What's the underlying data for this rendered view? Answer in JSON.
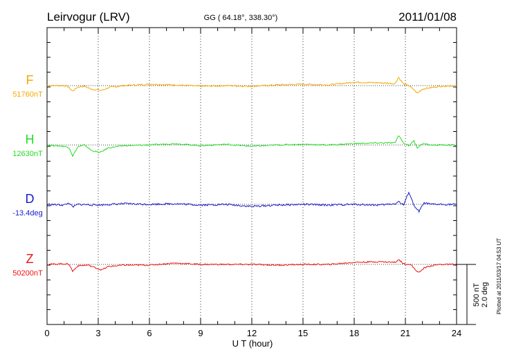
{
  "chart_data": {
    "type": "line",
    "title": "Leirvogur (LRV)",
    "subtitle": "GG ( 64.18°, 338.30°)",
    "date": "2011/01/08",
    "xlabel": "U T (hour)",
    "xlim": [
      0,
      24
    ],
    "xticks": [
      0,
      3,
      6,
      9,
      12,
      15,
      18,
      21,
      24
    ],
    "grid": true,
    "scale_label_1": "500 nT",
    "scale_label_2": "2.0 deg",
    "footer": "Plotted at 2011/03/17 04:53 UT",
    "series": [
      {
        "name": "F",
        "baseline_label": "51760nT",
        "color": "#f5a800",
        "offset": 0.95,
        "values": [
          [
            0,
            0
          ],
          [
            1,
            0
          ],
          [
            1.2,
            -1
          ],
          [
            1.5,
            -8
          ],
          [
            1.8,
            -2
          ],
          [
            2.2,
            -1
          ],
          [
            2.6,
            -5
          ],
          [
            3.2,
            -7
          ],
          [
            3.6,
            -3
          ],
          [
            4.5,
            0
          ],
          [
            6,
            2
          ],
          [
            7.5,
            1
          ],
          [
            9,
            -1
          ],
          [
            10.5,
            0
          ],
          [
            12,
            -1
          ],
          [
            13.5,
            1
          ],
          [
            15,
            2
          ],
          [
            16.5,
            1
          ],
          [
            18,
            5
          ],
          [
            19.5,
            4
          ],
          [
            20.4,
            3
          ],
          [
            20.6,
            12
          ],
          [
            20.9,
            2
          ],
          [
            21.2,
            0
          ],
          [
            21.5,
            -6
          ],
          [
            21.7,
            -11
          ],
          [
            22,
            -5
          ],
          [
            22.5,
            -3
          ],
          [
            23,
            -1
          ],
          [
            24,
            0
          ]
        ]
      },
      {
        "name": "H",
        "baseline_label": "12630nT",
        "color": "#22dd22",
        "offset": 0.8,
        "values": [
          [
            0,
            0
          ],
          [
            1,
            -2
          ],
          [
            1.3,
            -4
          ],
          [
            1.5,
            -16
          ],
          [
            1.8,
            -3
          ],
          [
            2.2,
            0
          ],
          [
            2.6,
            -8
          ],
          [
            3.1,
            -11
          ],
          [
            3.6,
            -4
          ],
          [
            4.5,
            -1
          ],
          [
            6,
            0
          ],
          [
            7.5,
            2
          ],
          [
            9,
            -1
          ],
          [
            10.5,
            1
          ],
          [
            12,
            -2
          ],
          [
            13.5,
            0
          ],
          [
            15,
            1
          ],
          [
            16.5,
            0
          ],
          [
            18,
            2
          ],
          [
            19.5,
            3
          ],
          [
            20.4,
            3
          ],
          [
            20.6,
            14
          ],
          [
            20.9,
            3
          ],
          [
            21.2,
            -1
          ],
          [
            21.5,
            6
          ],
          [
            21.7,
            -4
          ],
          [
            22,
            2
          ],
          [
            22.5,
            0
          ],
          [
            23,
            0
          ],
          [
            24,
            0
          ]
        ]
      },
      {
        "name": "D",
        "baseline_label": "-13.4deg",
        "color": "#1a1acc",
        "offset": 1.2,
        "values": [
          [
            0,
            0
          ],
          [
            1,
            -1
          ],
          [
            1.3,
            2
          ],
          [
            1.5,
            -4
          ],
          [
            1.8,
            0
          ],
          [
            3,
            -1
          ],
          [
            4.5,
            1
          ],
          [
            6,
            0
          ],
          [
            7.5,
            1
          ],
          [
            9,
            -1
          ],
          [
            10.5,
            0
          ],
          [
            12,
            -3
          ],
          [
            13.5,
            -1
          ],
          [
            15,
            0
          ],
          [
            16.5,
            -1
          ],
          [
            18,
            0
          ],
          [
            19.5,
            -1
          ],
          [
            20.4,
            1
          ],
          [
            20.6,
            4
          ],
          [
            20.9,
            -1
          ],
          [
            21.2,
            18
          ],
          [
            21.4,
            5
          ],
          [
            21.6,
            -6
          ],
          [
            21.8,
            -10
          ],
          [
            22.1,
            2
          ],
          [
            22.5,
            0
          ],
          [
            23,
            0
          ],
          [
            24,
            0
          ]
        ]
      },
      {
        "name": "Z",
        "baseline_label": "50200nT",
        "color": "#ee1111",
        "offset": 0.9,
        "values": [
          [
            0,
            0
          ],
          [
            1,
            1
          ],
          [
            1.3,
            0
          ],
          [
            1.5,
            -10
          ],
          [
            1.8,
            -2
          ],
          [
            2.4,
            -1
          ],
          [
            3.2,
            -8
          ],
          [
            3.6,
            -3
          ],
          [
            4.5,
            -1
          ],
          [
            6,
            -1
          ],
          [
            7.5,
            2
          ],
          [
            9,
            0
          ],
          [
            10.5,
            0
          ],
          [
            12,
            0
          ],
          [
            13.5,
            -1
          ],
          [
            15,
            0
          ],
          [
            16.5,
            0
          ],
          [
            18,
            3
          ],
          [
            19.5,
            4
          ],
          [
            20.4,
            3
          ],
          [
            20.6,
            7
          ],
          [
            20.9,
            1
          ],
          [
            21.3,
            0
          ],
          [
            21.6,
            -8
          ],
          [
            21.8,
            -12
          ],
          [
            22.1,
            -5
          ],
          [
            22.5,
            -2
          ],
          [
            23,
            0
          ],
          [
            24,
            0
          ]
        ]
      }
    ]
  }
}
